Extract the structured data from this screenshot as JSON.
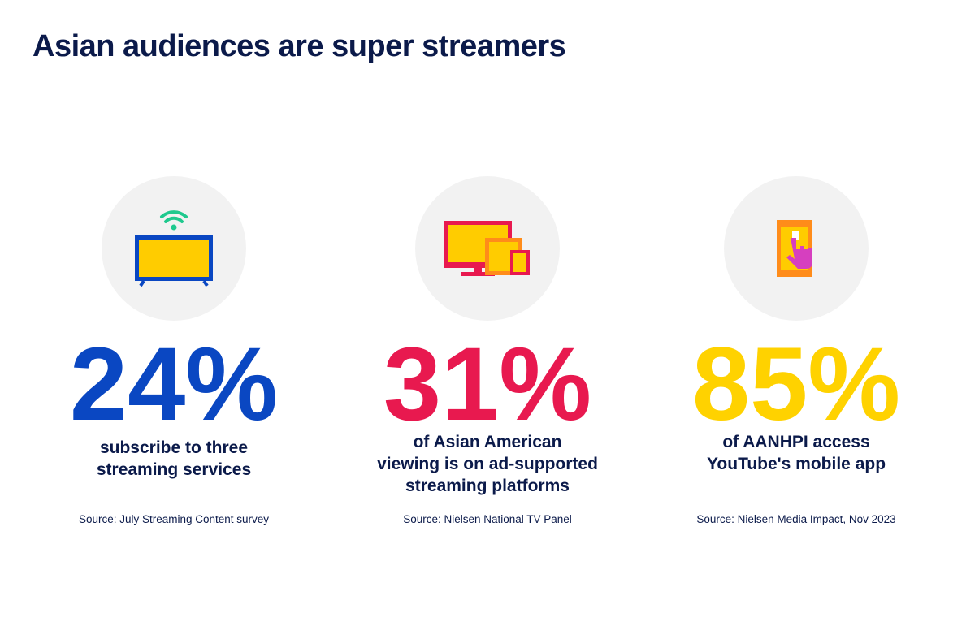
{
  "title": "Asian audiences are super streamers",
  "stats": [
    {
      "value": "24%",
      "description_lines": [
        "subscribe to three",
        "streaming services"
      ],
      "source": "Source: July Streaming Content survey"
    },
    {
      "value": "31%",
      "description_lines": [
        "of Asian American",
        "viewing is on ad-supported",
        "streaming platforms"
      ],
      "source": "Source: Nielsen National TV Panel"
    },
    {
      "value": "85%",
      "description_lines": [
        "of AANHPI access",
        "YouTube's mobile app"
      ],
      "source": "Source: Nielsen Media Impact, Nov 2023"
    }
  ]
}
